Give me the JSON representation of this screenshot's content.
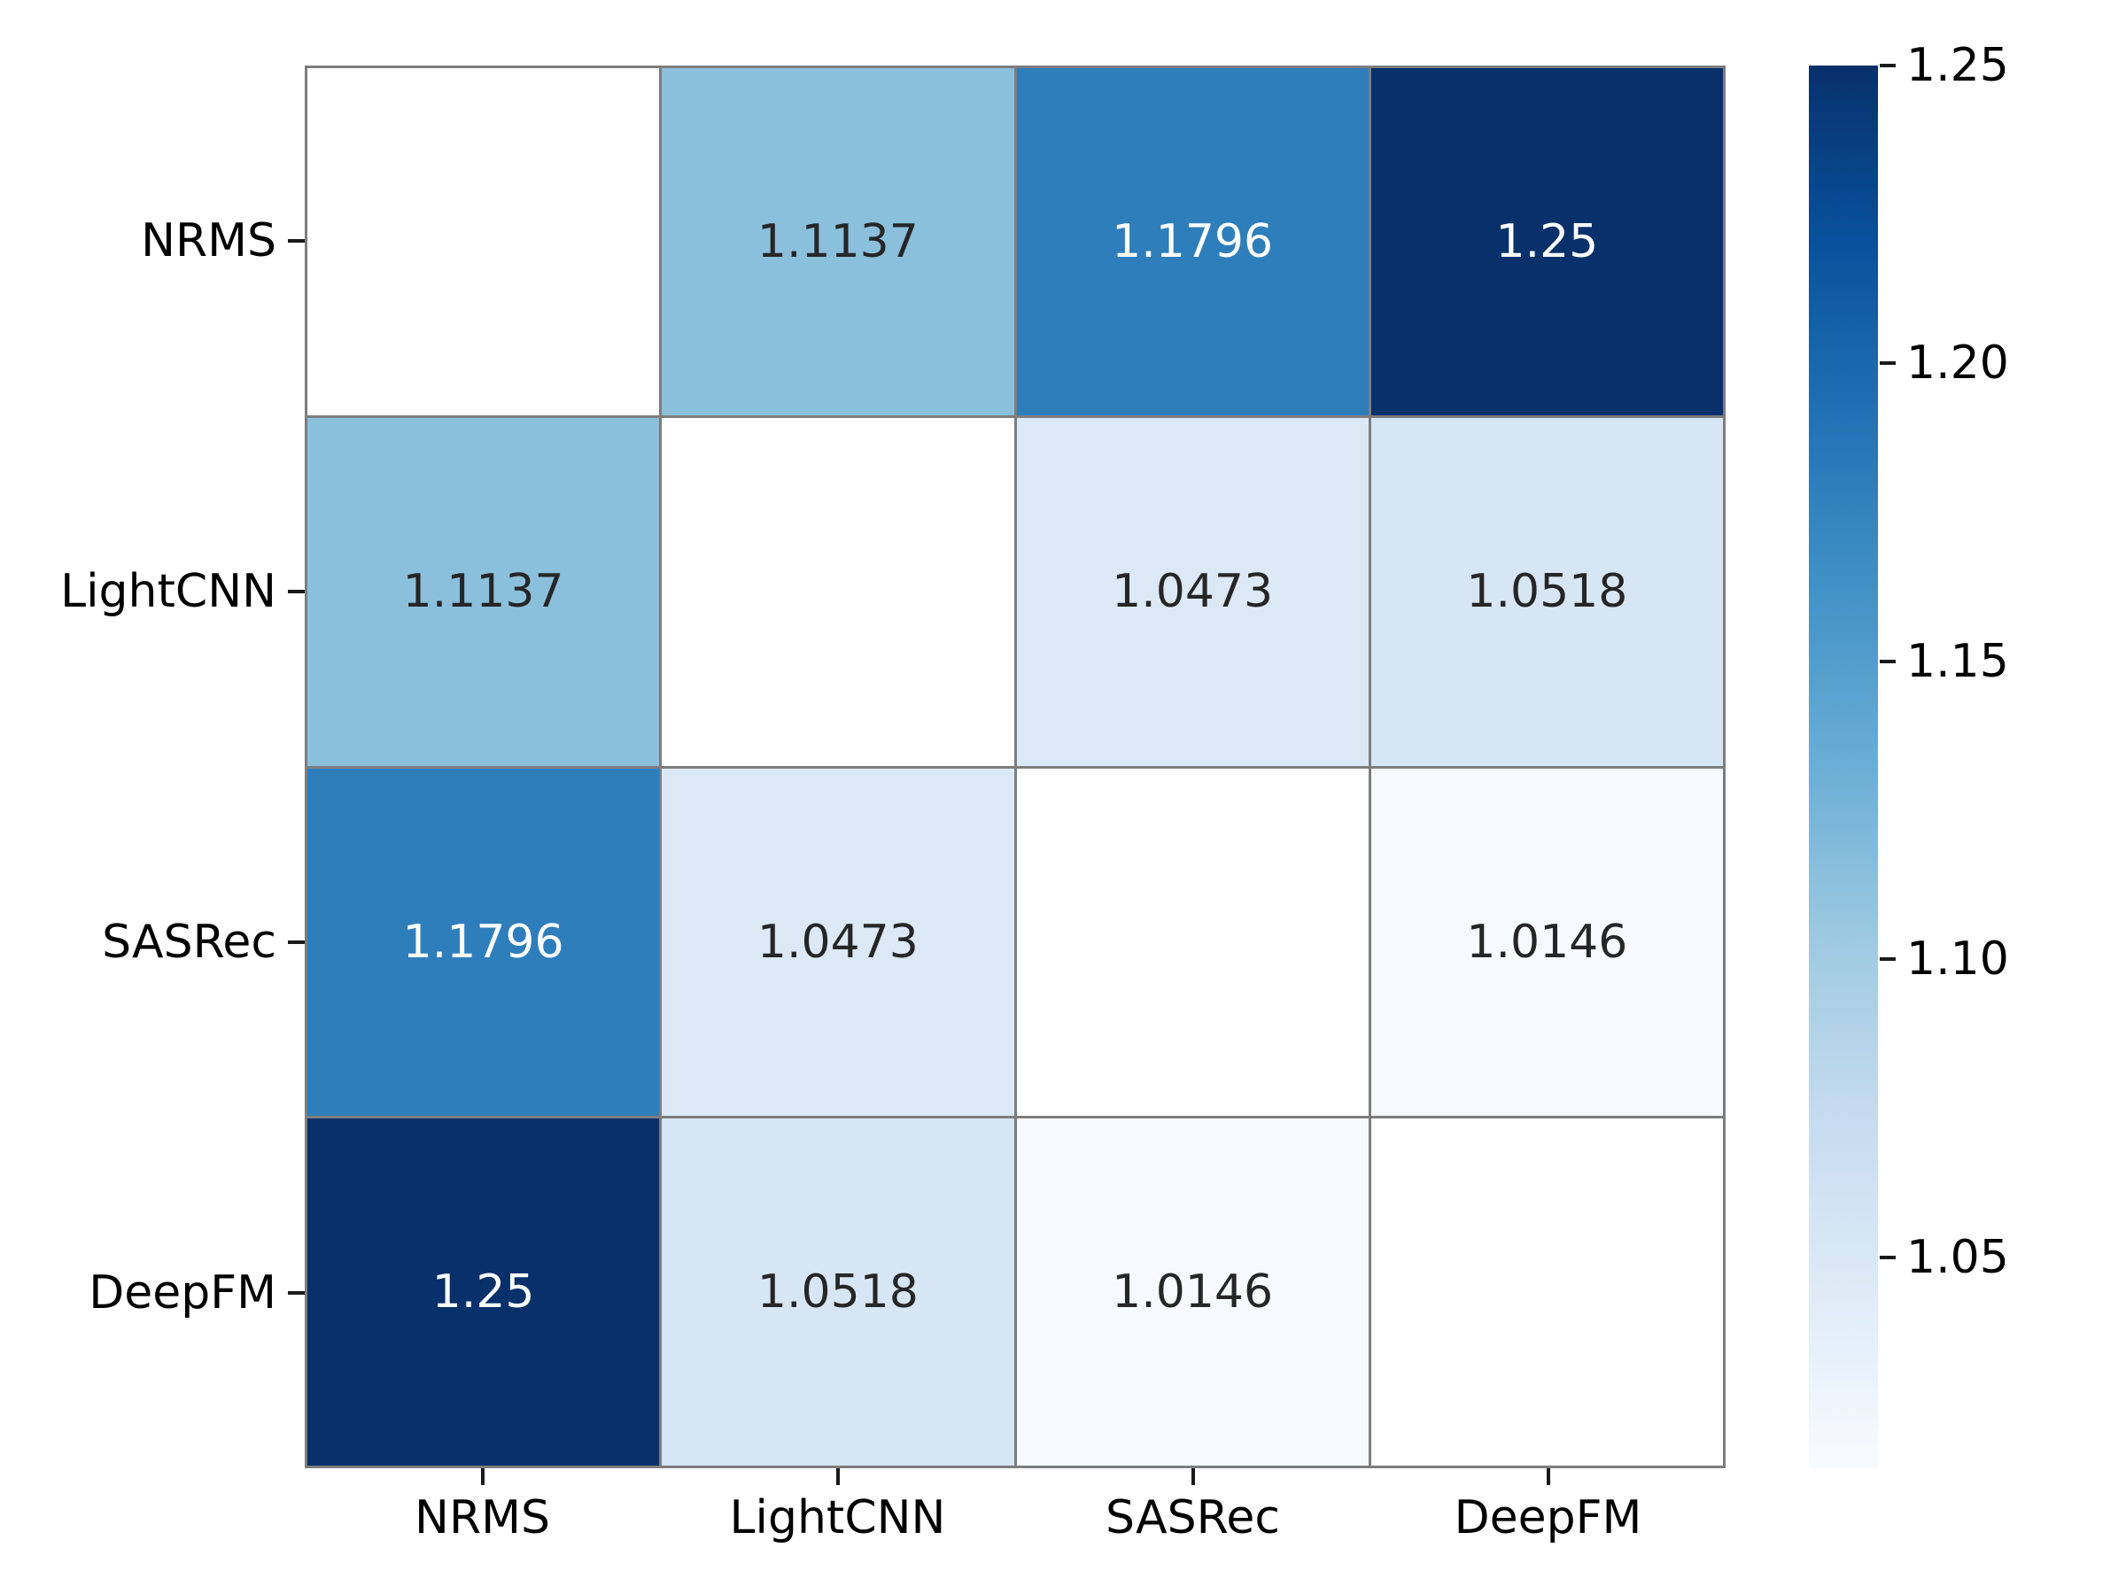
{
  "figure": {
    "background": "#ffffff"
  },
  "chart_data": {
    "type": "heatmap",
    "title": "",
    "xlabel": "",
    "ylabel": "",
    "x_categories": [
      "NRMS",
      "LightCNN",
      "SASRec",
      "DeepFM"
    ],
    "y_categories": [
      "NRMS",
      "LightCNN",
      "SASRec",
      "DeepFM"
    ],
    "matrix": [
      [
        null,
        1.1137,
        1.1796,
        1.25
      ],
      [
        1.1137,
        null,
        1.0473,
        1.0518
      ],
      [
        1.1796,
        1.0473,
        null,
        1.0146
      ],
      [
        1.25,
        1.0518,
        1.0146,
        null
      ]
    ],
    "cell_labels": [
      [
        "",
        "1.1137",
        "1.1796",
        "1.25"
      ],
      [
        "1.1137",
        "",
        "1.0473",
        "1.0518"
      ],
      [
        "1.1796",
        "1.0473",
        "",
        "1.0146"
      ],
      [
        "1.25",
        "1.0518",
        "1.0146",
        ""
      ]
    ],
    "cell_colors": [
      [
        "#ffffff",
        "#8bc0dd",
        "#2e7ebc",
        "#08306b"
      ],
      [
        "#8bc0dd",
        "#ffffff",
        "#dbe9f6",
        "#d7e6f5"
      ],
      [
        "#2e7ebc",
        "#dbe9f6",
        "#ffffff",
        "#f6faff"
      ],
      [
        "#08306b",
        "#d7e6f5",
        "#f6faff",
        "#ffffff"
      ]
    ],
    "cell_text_colors": [
      [
        "#262626",
        "#262626",
        "#ffffff",
        "#ffffff"
      ],
      [
        "#262626",
        "#262626",
        "#262626",
        "#262626"
      ],
      [
        "#ffffff",
        "#262626",
        "#262626",
        "#262626"
      ],
      [
        "#ffffff",
        "#262626",
        "#262626",
        "#262626"
      ]
    ],
    "colormap": "Blues",
    "vmin": 1.0146,
    "vmax": 1.25,
    "grid_on": true,
    "grid_line_color": "#7d7d7d",
    "tick_mark_color": "#1a1a1a",
    "axis_label_color": "#000000",
    "colorbar": {
      "position": "right",
      "tick_labels": [
        "1.25",
        "1.20",
        "1.15",
        "1.10",
        "1.05"
      ],
      "tick_values": [
        1.25,
        1.2,
        1.15,
        1.1,
        1.05
      ],
      "gradient_stops_top_to_bottom": [
        "#08306b",
        "#08519c",
        "#2171b5",
        "#4292c6",
        "#6baed6",
        "#9ecae1",
        "#c6dbef",
        "#deebf7",
        "#f7fbff"
      ]
    }
  }
}
